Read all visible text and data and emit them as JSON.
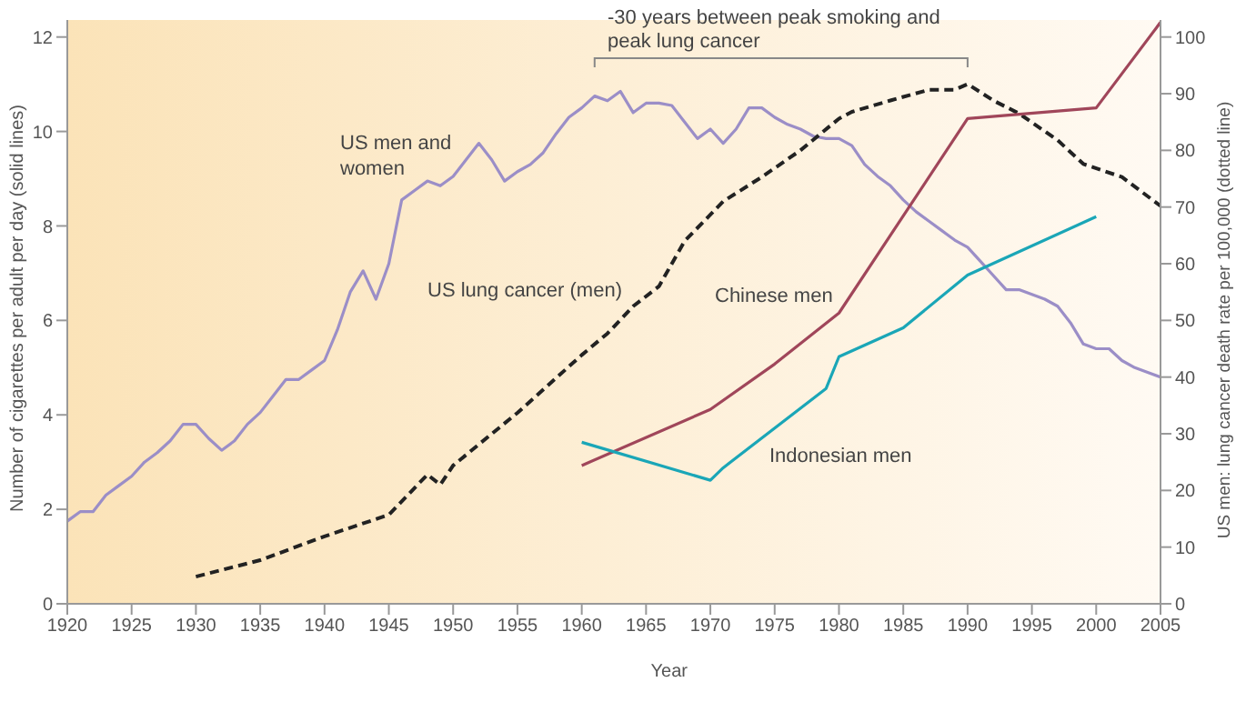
{
  "chart_data": {
    "type": "line",
    "xlabel": "Year",
    "ylabel": "Number of cigarettes per adult per day (solid lines)",
    "y2label": "US men: lung cancer death rate per 100,000 (dotted line)",
    "annotations": [
      "-30 years between peak smoking and peak lung cancer"
    ],
    "xlim": [
      1920,
      2005
    ],
    "xticks": [
      1920,
      1925,
      1930,
      1935,
      1940,
      1945,
      1950,
      1955,
      1960,
      1965,
      1970,
      1975,
      1980,
      1985,
      1990,
      1995,
      2000,
      2005
    ],
    "ylim": [
      0,
      12.36
    ],
    "yticks": [
      0,
      2,
      4,
      6,
      8,
      10,
      12
    ],
    "y2lim": [
      0,
      103
    ],
    "y2ticks": [
      0,
      10,
      20,
      30,
      40,
      50,
      60,
      70,
      80,
      90,
      100
    ],
    "grid": false,
    "legend": false,
    "marker": "none",
    "series": [
      {
        "name": "US men and women",
        "color": "#9b8ec7",
        "line_style": "solid",
        "x": [
          1920,
          1921,
          1922,
          1923,
          1924,
          1925,
          1926,
          1927,
          1928,
          1929,
          1930,
          1931,
          1932,
          1933,
          1934,
          1935,
          1936,
          1937,
          1938,
          1939,
          1940,
          1941,
          1942,
          1943,
          1944,
          1945,
          1946,
          1947,
          1948,
          1949,
          1950,
          1951,
          1952,
          1953,
          1954,
          1955,
          1956,
          1957,
          1958,
          1959,
          1960,
          1961,
          1962,
          1963,
          1964,
          1965,
          1966,
          1967,
          1968,
          1969,
          1970,
          1971,
          1972,
          1973,
          1974,
          1975,
          1976,
          1977,
          1978,
          1979,
          1980,
          1981,
          1982,
          1983,
          1984,
          1985,
          1986,
          1987,
          1988,
          1989,
          1990,
          1991,
          1992,
          1993,
          1994,
          1995,
          1996,
          1997,
          1998,
          1999,
          2000,
          2001,
          2002,
          2003,
          2004,
          2005
        ],
        "values": [
          1.75,
          1.95,
          1.95,
          2.3,
          2.5,
          2.7,
          3.0,
          3.2,
          3.45,
          3.8,
          3.8,
          3.5,
          3.25,
          3.45,
          3.8,
          4.05,
          4.4,
          4.75,
          4.75,
          4.95,
          5.15,
          5.8,
          6.6,
          7.05,
          6.45,
          7.2,
          8.55,
          8.75,
          8.95,
          8.85,
          9.05,
          9.4,
          9.75,
          9.4,
          8.95,
          9.15,
          9.3,
          9.55,
          9.95,
          10.3,
          10.5,
          10.75,
          10.65,
          10.85,
          10.4,
          10.6,
          10.6,
          10.55,
          10.2,
          9.85,
          10.05,
          9.75,
          10.05,
          10.5,
          10.5,
          10.3,
          10.15,
          10.05,
          9.9,
          9.85,
          9.85,
          9.7,
          9.3,
          9.05,
          8.85,
          8.55,
          8.3,
          8.1,
          7.9,
          7.7,
          7.55,
          7.25,
          6.95,
          6.65,
          6.65,
          6.55,
          6.45,
          6.3,
          5.95,
          5.5,
          5.4,
          5.4,
          5.15,
          5.0,
          4.9,
          4.8
        ]
      },
      {
        "name": "US lung cancer (men)",
        "color": "#222222",
        "line_style": "dashed",
        "axis": "y2",
        "x": [
          1930,
          1935,
          1940,
          1945,
          1948,
          1949,
          1950,
          1955,
          1960,
          1962,
          1964,
          1966,
          1968,
          1971,
          1974,
          1977,
          1980,
          1981,
          1984,
          1987,
          1989,
          1990,
          1992,
          1994,
          1997,
          1999,
          2002,
          2005
        ],
        "values": [
          4.8,
          7.7,
          11.9,
          15.7,
          22.8,
          21,
          24.4,
          33.7,
          43.9,
          47.7,
          52.5,
          56,
          64,
          71,
          75.3,
          80,
          85.6,
          86.8,
          88.8,
          90.7,
          90.7,
          91.7,
          88.8,
          86.5,
          81.8,
          77.6,
          75.3,
          70.2
        ]
      },
      {
        "name": "Chinese men",
        "color": "#a0465a",
        "line_style": "solid",
        "axis": "y2",
        "x": [
          1960,
          1970,
          1975,
          1980,
          1990,
          2000,
          2005
        ],
        "values": [
          24.4,
          34.3,
          42.3,
          51.3,
          85.6,
          87.5,
          102.6
        ]
      },
      {
        "name": "Indonesian men",
        "color": "#1aa6b7",
        "line_style": "solid",
        "axis": "y2",
        "x": [
          1960,
          1970,
          1971,
          1979,
          1980,
          1985,
          1990,
          2000
        ],
        "values": [
          28.5,
          21.8,
          24,
          38,
          43.6,
          48.7,
          58,
          68.3
        ]
      }
    ]
  }
}
